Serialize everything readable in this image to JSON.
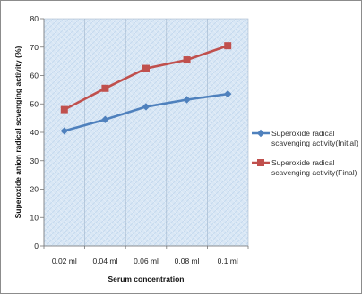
{
  "chart_data": {
    "type": "line",
    "title": "",
    "xlabel": "Serum concentration",
    "ylabel": "Superoxide anion radical scvenging activity (%)",
    "categories": [
      "0.02 ml",
      "0.04 ml",
      "0.06 ml",
      "0.08 ml",
      "0.1 ml"
    ],
    "ylim": [
      0,
      80
    ],
    "yticks": [
      0,
      10,
      20,
      30,
      40,
      50,
      60,
      70,
      80
    ],
    "grid": false,
    "legend_position": "right",
    "series": [
      {
        "name": "Superoxide radical scavenging activity(Initial)",
        "legend_lines": [
          "Superoxide radical",
          "scavenging activity(Initial)"
        ],
        "values": [
          40.5,
          44.5,
          49,
          51.5,
          53.5
        ],
        "color": "#4f81bd",
        "marker": "diamond"
      },
      {
        "name": "Superoxide radical scavenging activity(Final)",
        "legend_lines": [
          "Superoxide radical",
          "scavenging activity(Final)"
        ],
        "values": [
          48,
          55.5,
          62.5,
          65.5,
          70.5
        ],
        "color": "#c0504d",
        "marker": "square"
      }
    ]
  }
}
